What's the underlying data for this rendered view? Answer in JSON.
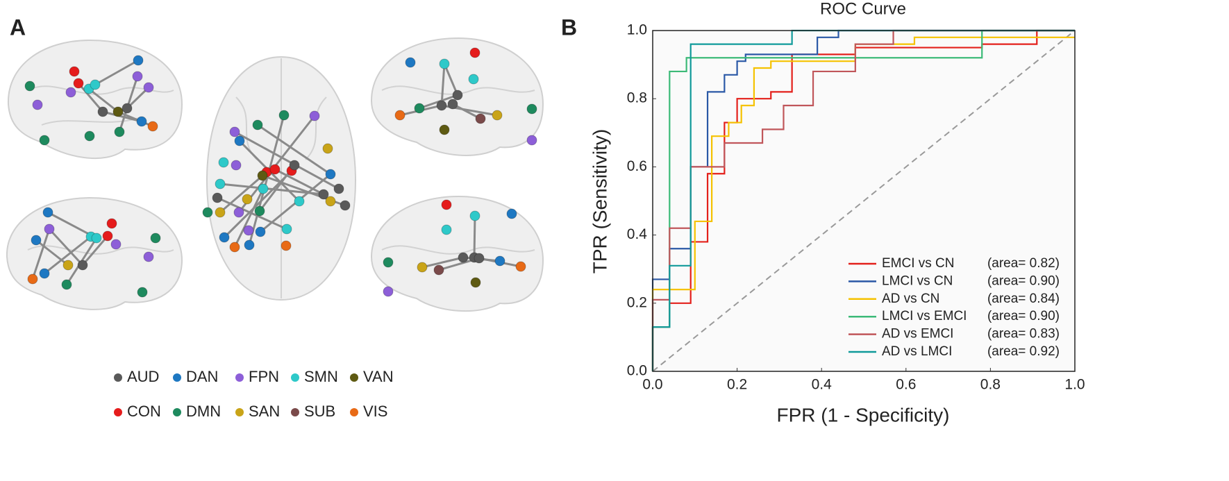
{
  "panel_labels": [
    "A",
    "B"
  ],
  "brain_legend": [
    {
      "name": "AUD",
      "color": "#5a5a5a"
    },
    {
      "name": "DAN",
      "color": "#1e78c2"
    },
    {
      "name": "FPN",
      "color": "#8d5fd8"
    },
    {
      "name": "SMN",
      "color": "#2ec9c9"
    },
    {
      "name": "VAN",
      "color": "#5e5a12"
    },
    {
      "name": "CON",
      "color": "#e51c1c"
    },
    {
      "name": "DMN",
      "color": "#1e8a5e"
    },
    {
      "name": "SAN",
      "color": "#c9a418"
    },
    {
      "name": "SUB",
      "color": "#7a4a4a"
    },
    {
      "name": "VIS",
      "color": "#e86a16"
    }
  ],
  "chart_data": {
    "type": "line",
    "title": "ROC Curve",
    "x_label": "FPR (1 - Specificity)",
    "y_label": "TPR (Sensitivity)",
    "xlim": [
      0,
      1
    ],
    "ylim": [
      0,
      1
    ],
    "xticks": [
      {
        "value": 0,
        "label": "0.0"
      },
      {
        "value": 0.2,
        "label": "0.2"
      },
      {
        "value": 0.4,
        "label": "0.4"
      },
      {
        "value": 0.6,
        "label": "0.6"
      },
      {
        "value": 0.8,
        "label": "0.8"
      },
      {
        "value": 1,
        "label": "1.0"
      }
    ],
    "yticks": [
      {
        "value": 0,
        "label": "0.0"
      },
      {
        "value": 0.2,
        "label": "0.2"
      },
      {
        "value": 0.4,
        "label": "0.4"
      },
      {
        "value": 0.6,
        "label": "0.6"
      },
      {
        "value": 0.8,
        "label": "0.8"
      },
      {
        "value": 1,
        "label": "1.0"
      }
    ],
    "series": [
      {
        "name": "EMCI vs CN",
        "legend_note": "(area= 0.82)",
        "color": "#e3201b",
        "x": [
          0,
          0,
          0.04,
          0.04,
          0.09,
          0.09,
          0.13,
          0.13,
          0.17,
          0.17,
          0.2,
          0.2,
          0.28,
          0.28,
          0.33,
          0.33,
          0.48,
          0.48,
          0.78,
          0.78,
          0.91,
          0.91,
          1
        ],
        "values": [
          0,
          0.13,
          0.13,
          0.2,
          0.2,
          0.38,
          0.38,
          0.58,
          0.58,
          0.73,
          0.73,
          0.8,
          0.8,
          0.82,
          0.82,
          0.93,
          0.93,
          0.95,
          0.95,
          0.96,
          0.96,
          1,
          1
        ]
      },
      {
        "name": "LMCI vs CN",
        "legend_note": "(area= 0.90)",
        "color": "#2a58a6",
        "x": [
          0,
          0,
          0.04,
          0.04,
          0.09,
          0.09,
          0.13,
          0.13,
          0.17,
          0.17,
          0.2,
          0.2,
          0.22,
          0.22,
          0.39,
          0.39,
          0.44,
          0.44,
          1
        ],
        "values": [
          0,
          0.27,
          0.27,
          0.36,
          0.36,
          0.6,
          0.6,
          0.82,
          0.82,
          0.87,
          0.87,
          0.91,
          0.91,
          0.93,
          0.93,
          0.98,
          0.98,
          1,
          1
        ]
      },
      {
        "name": "AD vs CN",
        "legend_note": "(area= 0.84)",
        "color": "#f5c200",
        "x": [
          0,
          0,
          0.1,
          0.1,
          0.14,
          0.14,
          0.18,
          0.18,
          0.21,
          0.21,
          0.24,
          0.24,
          0.28,
          0.28,
          0.48,
          0.48,
          0.62,
          0.62,
          1
        ],
        "values": [
          0,
          0.24,
          0.24,
          0.44,
          0.44,
          0.69,
          0.69,
          0.73,
          0.73,
          0.78,
          0.78,
          0.89,
          0.89,
          0.91,
          0.91,
          0.96,
          0.96,
          0.98,
          0.98
        ]
      },
      {
        "name": "LMCI vs EMCI",
        "legend_note": "(area= 0.90)",
        "color": "#3cba78",
        "x": [
          0,
          0,
          0.04,
          0.04,
          0.08,
          0.08,
          0.78,
          0.78,
          1
        ],
        "values": [
          0,
          0.13,
          0.13,
          0.88,
          0.88,
          0.92,
          0.92,
          1,
          1
        ]
      },
      {
        "name": "AD vs EMCI",
        "legend_note": "(area= 0.83)",
        "color": "#c0565a",
        "x": [
          0,
          0,
          0.04,
          0.04,
          0.09,
          0.09,
          0.17,
          0.17,
          0.26,
          0.26,
          0.31,
          0.31,
          0.38,
          0.38,
          0.48,
          0.48,
          0.57,
          0.57,
          1
        ],
        "values": [
          0,
          0.21,
          0.21,
          0.42,
          0.42,
          0.6,
          0.6,
          0.67,
          0.67,
          0.71,
          0.71,
          0.78,
          0.78,
          0.88,
          0.88,
          0.96,
          0.96,
          1,
          1
        ]
      },
      {
        "name": "AD vs LMCI",
        "legend_note": "(area= 0.92)",
        "color": "#109a9a",
        "x": [
          0,
          0,
          0.04,
          0.04,
          0.09,
          0.09,
          0.33,
          0.33,
          1
        ],
        "values": [
          0,
          0.13,
          0.13,
          0.31,
          0.31,
          0.96,
          0.96,
          1,
          1
        ]
      }
    ]
  }
}
